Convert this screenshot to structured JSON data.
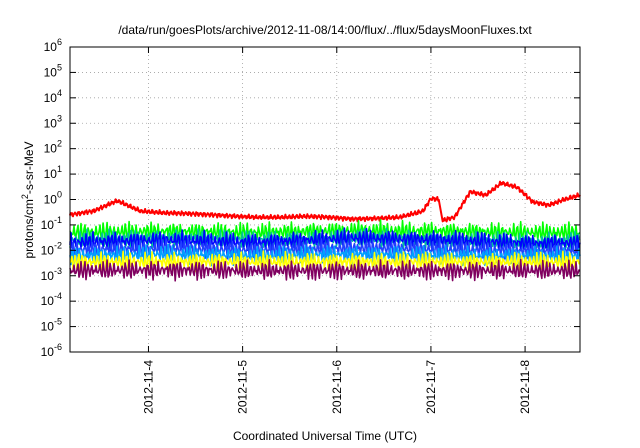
{
  "chart_data": {
    "type": "line",
    "title": "/data/run/goesPlots/archive/2012-11-08/14:00/flux/../flux/5daysMoonFluxes.txt",
    "xlabel": "Coordinated Universal Time (UTC)",
    "ylabel_parts": {
      "base": "protons/cm",
      "sup": "2",
      "rest": "-s-sr-MeV"
    },
    "yscale": "log",
    "ylim": [
      1e-06,
      1000000.0
    ],
    "xlim": [
      "2012-11-03T04:00",
      "2012-11-08T14:00"
    ],
    "grid": true,
    "y_ticks": [
      {
        "value": 1e-06,
        "base": "10",
        "exp": "-6"
      },
      {
        "value": 1e-05,
        "base": "10",
        "exp": "-5"
      },
      {
        "value": 0.0001,
        "base": "10",
        "exp": "-4"
      },
      {
        "value": 0.001,
        "base": "10",
        "exp": "-3"
      },
      {
        "value": 0.01,
        "base": "10",
        "exp": "-2"
      },
      {
        "value": 0.1,
        "base": "10",
        "exp": "-1"
      },
      {
        "value": 1.0,
        "base": "10",
        "exp": "0"
      },
      {
        "value": 10.0,
        "base": "10",
        "exp": "1"
      },
      {
        "value": 100.0,
        "base": "10",
        "exp": "2"
      },
      {
        "value": 1000.0,
        "base": "10",
        "exp": "3"
      },
      {
        "value": 10000.0,
        "base": "10",
        "exp": "4"
      },
      {
        "value": 100000.0,
        "base": "10",
        "exp": "5"
      },
      {
        "value": 1000000.0,
        "base": "10",
        "exp": "6"
      }
    ],
    "x_ticks": [
      {
        "value": "2012-11-04",
        "label": "2012-11-4"
      },
      {
        "value": "2012-11-05",
        "label": "2012-11-5"
      },
      {
        "value": "2012-11-06",
        "label": "2012-11-6"
      },
      {
        "value": "2012-11-07",
        "label": "2012-11-7"
      },
      {
        "value": "2012-11-08",
        "label": "2012-11-8"
      }
    ],
    "series": [
      {
        "color": "#ff0000",
        "x": [
          "2012-11-03T04:00",
          "2012-11-03T10:00",
          "2012-11-03T16:00",
          "2012-11-03T22:00",
          "2012-11-04T04:00",
          "2012-11-04T10:00",
          "2012-11-04T16:00",
          "2012-11-04T22:00",
          "2012-11-05T04:00",
          "2012-11-05T10:00",
          "2012-11-05T16:00",
          "2012-11-05T22:00",
          "2012-11-06T04:00",
          "2012-11-06T10:00",
          "2012-11-06T16:00",
          "2012-11-06T22:00",
          "2012-11-07T00:00",
          "2012-11-07T02:00",
          "2012-11-07T03:00",
          "2012-11-07T06:00",
          "2012-11-07T10:00",
          "2012-11-07T14:00",
          "2012-11-07T18:00",
          "2012-11-07T22:00",
          "2012-11-08T02:00",
          "2012-11-08T06:00",
          "2012-11-08T10:00",
          "2012-11-08T14:00"
        ],
        "y": [
          0.25,
          0.35,
          0.9,
          0.35,
          0.3,
          0.28,
          0.25,
          0.22,
          0.2,
          0.2,
          0.22,
          0.2,
          0.17,
          0.18,
          0.2,
          0.35,
          1.1,
          1.0,
          0.15,
          0.2,
          2.0,
          1.5,
          4.5,
          3.0,
          0.8,
          0.6,
          1.0,
          1.5
        ]
      },
      {
        "color": "#00ff00",
        "x": [
          "2012-11-03T04:00",
          "2012-11-04T04:00",
          "2012-11-05T04:00",
          "2012-11-06T04:00",
          "2012-11-07T04:00",
          "2012-11-08T04:00",
          "2012-11-08T14:00"
        ],
        "y": [
          0.05,
          0.055,
          0.05,
          0.06,
          0.055,
          0.05,
          0.05
        ]
      },
      {
        "color": "#00c0a0",
        "x": [
          "2012-11-03T04:00",
          "2012-11-04T04:00",
          "2012-11-05T04:00",
          "2012-11-06T04:00",
          "2012-11-07T04:00",
          "2012-11-08T04:00",
          "2012-11-08T14:00"
        ],
        "y": [
          0.025,
          0.03,
          0.025,
          0.03,
          0.025,
          0.02,
          0.025
        ]
      },
      {
        "color": "#0000ff",
        "x": [
          "2012-11-03T04:00",
          "2012-11-04T04:00",
          "2012-11-05T04:00",
          "2012-11-06T04:00",
          "2012-11-07T04:00",
          "2012-11-08T04:00",
          "2012-11-08T14:00"
        ],
        "y": [
          0.02,
          0.025,
          0.02,
          0.03,
          0.025,
          0.018,
          0.02
        ]
      },
      {
        "color": "#2040ff",
        "x": [
          "2012-11-03T04:00",
          "2012-11-04T04:00",
          "2012-11-05T04:00",
          "2012-11-06T04:00",
          "2012-11-07T04:00",
          "2012-11-08T04:00",
          "2012-11-08T14:00"
        ],
        "y": [
          0.01,
          0.012,
          0.01,
          0.012,
          0.011,
          0.009,
          0.01
        ]
      },
      {
        "color": "#00a0ff",
        "x": [
          "2012-11-03T04:00",
          "2012-11-04T04:00",
          "2012-11-05T04:00",
          "2012-11-06T04:00",
          "2012-11-07T04:00",
          "2012-11-08T04:00",
          "2012-11-08T14:00"
        ],
        "y": [
          0.006,
          0.007,
          0.006,
          0.007,
          0.006,
          0.006,
          0.006
        ]
      },
      {
        "color": "#ffff00",
        "x": [
          "2012-11-03T04:00",
          "2012-11-04T04:00",
          "2012-11-05T04:00",
          "2012-11-06T04:00",
          "2012-11-07T04:00",
          "2012-11-08T04:00",
          "2012-11-08T14:00"
        ],
        "y": [
          0.0035,
          0.0035,
          0.0035,
          0.0035,
          0.0035,
          0.0035,
          0.0035
        ]
      },
      {
        "color": "#800060",
        "x": [
          "2012-11-03T04:00",
          "2012-11-04T04:00",
          "2012-11-05T04:00",
          "2012-11-06T04:00",
          "2012-11-07T04:00",
          "2012-11-08T04:00",
          "2012-11-08T14:00"
        ],
        "y": [
          0.0016,
          0.0017,
          0.0016,
          0.0016,
          0.0016,
          0.0016,
          0.0016
        ]
      }
    ]
  }
}
